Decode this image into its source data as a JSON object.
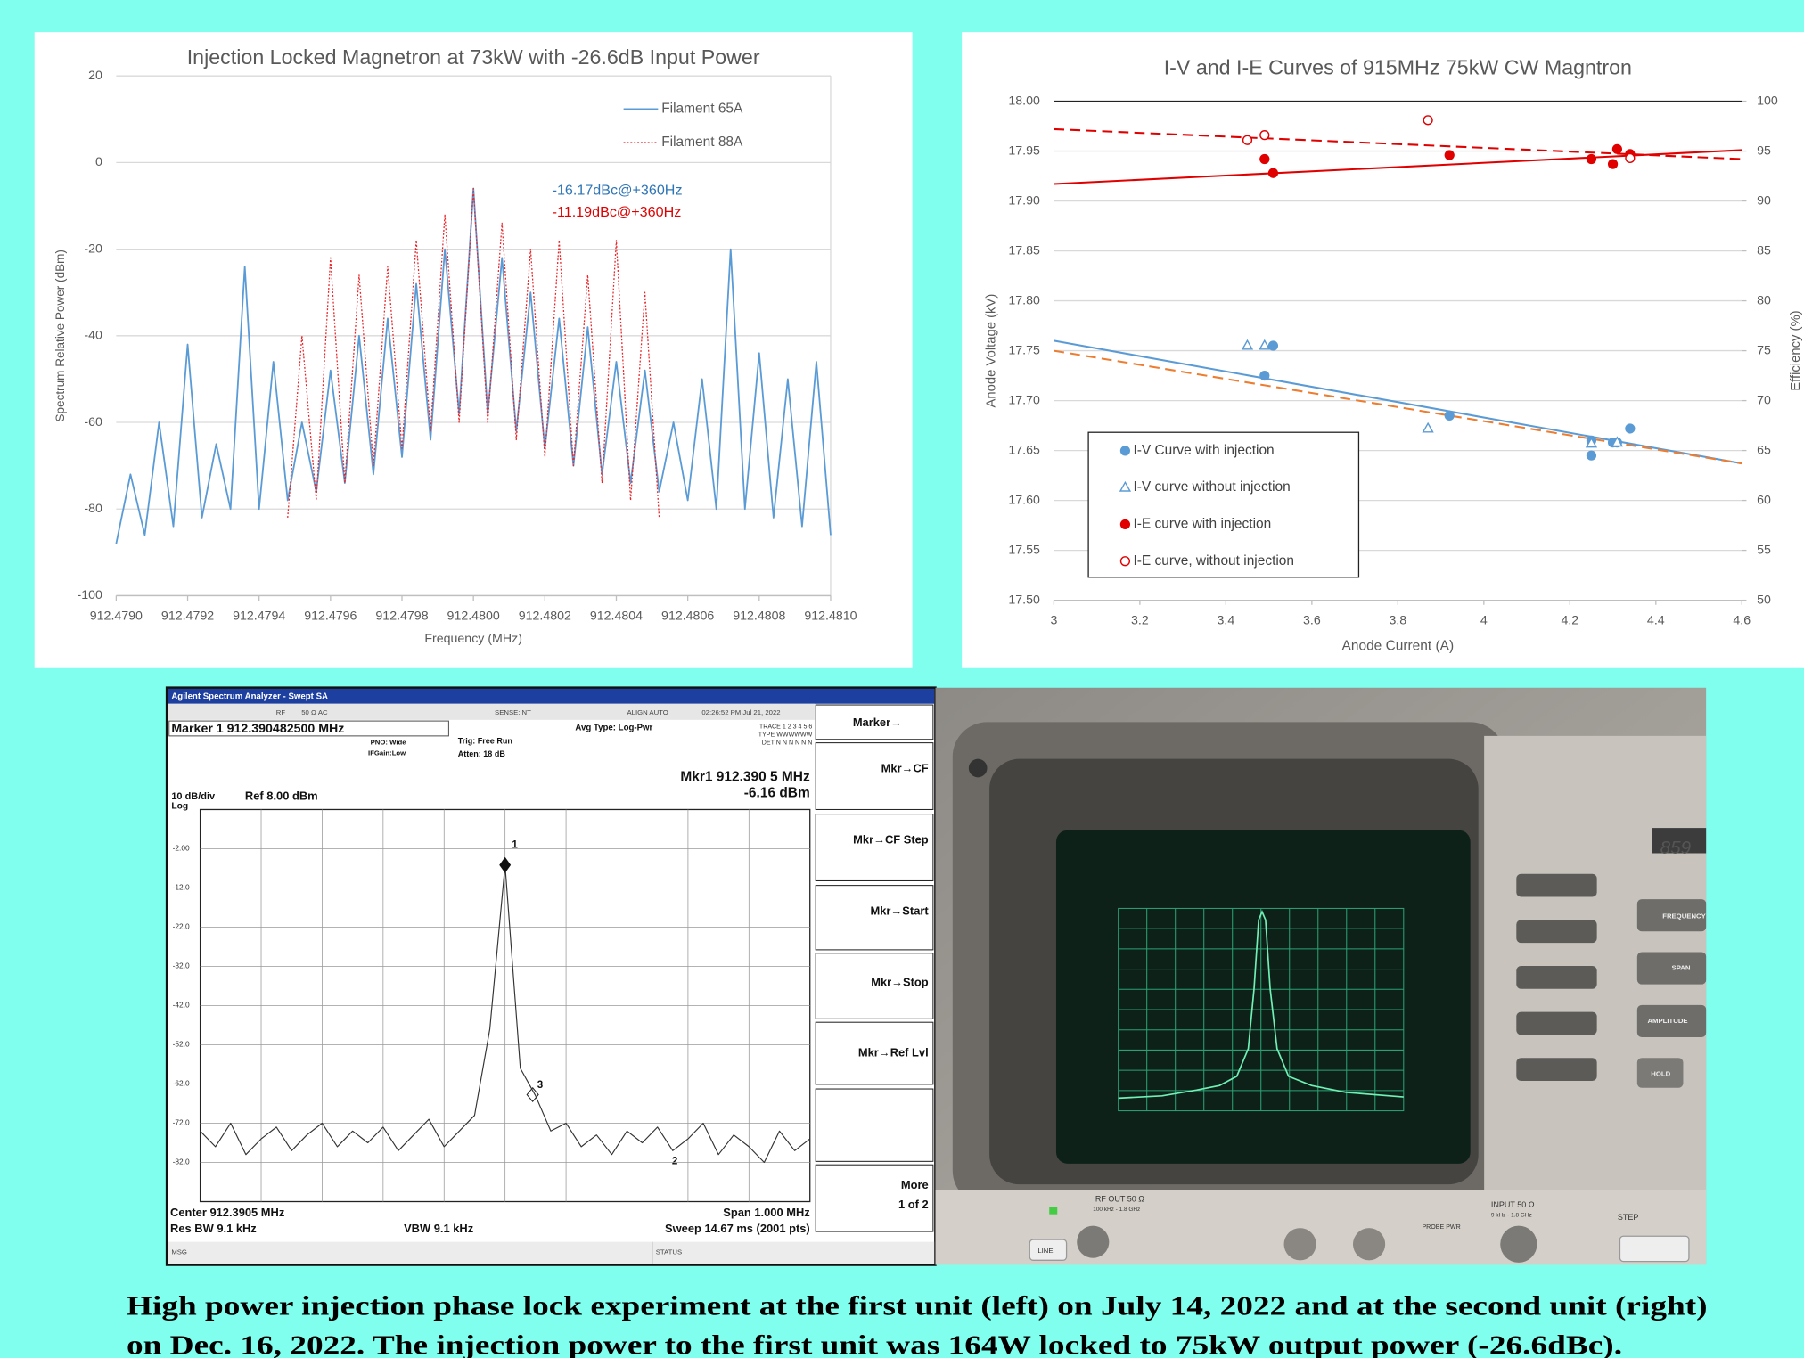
{
  "chart_data": [
    {
      "type": "line",
      "title": "Injection Locked Magnetron at 73kW with -26.6dB Input Power",
      "x_label": "Frequency (MHz)",
      "y_label": "Spectrum Relative Power (dBm)",
      "x": [
        912.479,
        912.47904,
        912.47908,
        912.47912,
        912.47916,
        912.4792,
        912.47924,
        912.47928,
        912.47932,
        912.47936,
        912.4794,
        912.47944,
        912.47948,
        912.47952,
        912.47956,
        912.4796,
        912.47964,
        912.47968,
        912.47972,
        912.47976,
        912.4798,
        912.47984,
        912.47988,
        912.47992,
        912.47996,
        912.48,
        912.48004,
        912.48008,
        912.48012,
        912.48016,
        912.4802,
        912.48024,
        912.48028,
        912.48032,
        912.48036,
        912.4804,
        912.48044,
        912.48048,
        912.48052,
        912.48056,
        912.4806,
        912.48064,
        912.48068,
        912.48072,
        912.48076,
        912.4808,
        912.48084,
        912.48088,
        912.48092,
        912.48096,
        912.481
      ],
      "series": [
        {
          "name": "Filament 65A",
          "color": "#5b9bd5",
          "values": [
            -88,
            -72,
            -86,
            -60,
            -84,
            -42,
            -82,
            -65,
            -80,
            -24,
            -80,
            -46,
            -78,
            -60,
            -76,
            -48,
            -74,
            -40,
            -72,
            -36,
            -68,
            -28,
            -64,
            -20,
            -58,
            -6,
            -58,
            -22,
            -62,
            -30,
            -66,
            -36,
            -70,
            -38,
            -72,
            -46,
            -74,
            -48,
            -76,
            -60,
            -78,
            -50,
            -80,
            -20,
            -80,
            -44,
            -82,
            -50,
            -84,
            -46,
            -86
          ]
        },
        {
          "name": "Filament 88A",
          "color": "#e8262a",
          "dotted": true,
          "values": [
            null,
            null,
            null,
            null,
            null,
            null,
            null,
            null,
            null,
            null,
            null,
            null,
            -82,
            -40,
            -78,
            -22,
            -74,
            -26,
            -70,
            -24,
            -66,
            -18,
            -62,
            -12,
            -60,
            -6,
            -60,
            -14,
            -64,
            -20,
            -68,
            -18,
            -70,
            -26,
            -74,
            -18,
            -78,
            -30,
            -82,
            null,
            null,
            null,
            null,
            null,
            null,
            null,
            null,
            null,
            null,
            null,
            null
          ]
        }
      ],
      "xlim": [
        912.479,
        912.481
      ],
      "xticks": [
        {
          "value": 912.479,
          "label": "912.4790"
        },
        {
          "value": 912.4792,
          "label": "912.4792"
        },
        {
          "value": 912.4794,
          "label": "912.4794"
        },
        {
          "value": 912.4796,
          "label": "912.4796"
        },
        {
          "value": 912.4798,
          "label": "912.4798"
        },
        {
          "value": 912.48,
          "label": "912.4800"
        },
        {
          "value": 912.4802,
          "label": "912.4802"
        },
        {
          "value": 912.4804,
          "label": "912.4804"
        },
        {
          "value": 912.4806,
          "label": "912.4806"
        },
        {
          "value": 912.4808,
          "label": "912.4808"
        },
        {
          "value": 912.481,
          "label": "912.4810"
        }
      ],
      "ylim": [
        -100,
        20
      ],
      "yticks": [
        20,
        0,
        -20,
        -40,
        -60,
        -80,
        -100
      ],
      "grid": true,
      "legend": "upper right",
      "annotations": [
        {
          "text": "-16.17dBc@+360Hz",
          "color": "#2e75b6"
        },
        {
          "text": "-11.19dBc@+360Hz",
          "color": "#e00000"
        }
      ]
    },
    {
      "type": "scatter",
      "title": "I-V and I-E Curves of 915MHz 75kW CW Magntron",
      "x_label": "Anode Current (A)",
      "y_label": "Anode Voltage (kV)",
      "y2_label": "Efficiency (%)",
      "xlim": [
        3,
        4.6
      ],
      "xticks": [
        3,
        3.2,
        3.4,
        3.6,
        3.8,
        4,
        4.2,
        4.4,
        4.6
      ],
      "ylim": [
        17.5,
        18
      ],
      "yticks": [
        {
          "value": 17.5,
          "label": "17.50"
        },
        17.55,
        {
          "value": 17.6,
          "label": "17.60"
        },
        17.65,
        {
          "value": 17.7,
          "label": "17.70"
        },
        17.75,
        {
          "value": 17.8,
          "label": "17.80"
        },
        17.85,
        {
          "value": 17.9,
          "label": "17.90"
        },
        17.95,
        {
          "value": 18,
          "label": "18.00"
        }
      ],
      "y2lim": [
        50,
        100
      ],
      "y2ticks": [
        50,
        55,
        60,
        65,
        70,
        75,
        80,
        85,
        90,
        95,
        100
      ],
      "grid": true,
      "legend": "lower left",
      "series": [
        {
          "name": "I-V Curve with injection",
          "color": "#5b9bd5",
          "marker": "circle",
          "filled": true,
          "x": [
            3.49,
            3.51,
            3.92,
            4.25,
            4.25,
            4.3,
            4.31,
            4.34
          ],
          "values": [
            17.725,
            17.755,
            17.685,
            17.66,
            17.645,
            17.658,
            17.658,
            17.672
          ]
        },
        {
          "name": "I-V curve without injection",
          "color": "#5b9bd5",
          "marker": "triangle",
          "filled": false,
          "x": [
            3.45,
            3.49,
            3.87,
            4.25,
            4.31
          ],
          "values": [
            17.755,
            17.755,
            17.672,
            17.657,
            17.658
          ]
        },
        {
          "name": "I-E curve with injection",
          "color": "#e00000",
          "marker": "circle",
          "filled": true,
          "axis": "y2",
          "x": [
            3.49,
            3.51,
            3.92,
            4.25,
            4.3,
            4.31,
            4.34
          ],
          "values": [
            94.2,
            92.8,
            94.6,
            94.2,
            93.7,
            95.2,
            94.7
          ]
        },
        {
          "name": "I-E curve, without injection",
          "color": "#e00000",
          "marker": "circle",
          "filled": false,
          "axis": "y2",
          "x": [
            3.45,
            3.49,
            3.87,
            4.34
          ],
          "values": [
            96.1,
            96.6,
            98.1,
            94.3
          ]
        }
      ],
      "trendlines": [
        {
          "color": "#5b9bd5",
          "dashed": false,
          "x": [
            3,
            4.6
          ],
          "values": [
            17.76,
            17.637
          ]
        },
        {
          "color": "#ed7d31",
          "dashed": true,
          "x": [
            3,
            4.6
          ],
          "values": [
            17.75,
            17.637
          ]
        },
        {
          "color": "#e00000",
          "dashed": false,
          "axis": "y2",
          "x": [
            3,
            4.6
          ],
          "values": [
            91.7,
            95.1
          ]
        },
        {
          "color": "#e00000",
          "dashed": true,
          "axis": "y2",
          "x": [
            3,
            4.6
          ],
          "values": [
            97.2,
            94.2
          ]
        }
      ]
    },
    {
      "type": "line",
      "color": "#333333",
      "x": [
        911.8905,
        911.9155,
        911.9405,
        911.9655,
        911.9905,
        912.0155,
        912.0405,
        912.0655,
        912.0905,
        912.1155,
        912.1405,
        912.1655,
        912.1905,
        912.2155,
        912.2405,
        912.2655,
        912.2905,
        912.3155,
        912.3405,
        912.3655,
        912.3905,
        912.4155,
        912.4405,
        912.4655,
        912.4905,
        912.5155,
        912.5405,
        912.5655,
        912.5905,
        912.6155,
        912.6405,
        912.6655,
        912.6905,
        912.7155,
        912.7405,
        912.7655,
        912.7905,
        912.8155,
        912.8405,
        912.8655,
        912.8905
      ],
      "values": [
        -74,
        -78,
        -72,
        -80,
        -76,
        -73,
        -79,
        -75,
        -72,
        -78,
        -74,
        -77,
        -73,
        -79,
        -75,
        -71,
        -78,
        -74,
        -70,
        -48,
        -6.16,
        -58,
        -65,
        -74,
        -72,
        -78,
        -75,
        -80,
        -74,
        -77,
        -73,
        -79,
        -76,
        -72,
        -80,
        -75,
        -78,
        -82,
        -74,
        -79,
        -76
      ],
      "xlim": [
        911.8905,
        912.8905
      ],
      "ylim": [
        -92,
        8
      ],
      "yticks": [
        {
          "value": -2,
          "label": "-2.00"
        },
        {
          "value": -12,
          "label": "-12.0"
        },
        {
          "value": -22,
          "label": "-22.0"
        },
        {
          "value": -32,
          "label": "-32.0"
        },
        {
          "value": -42,
          "label": "-42.0"
        },
        {
          "value": -52,
          "label": "-52.0"
        },
        {
          "value": -62,
          "label": "-62.0"
        },
        {
          "value": -72,
          "label": "-72.0"
        },
        {
          "value": -82,
          "label": "-82.0"
        }
      ],
      "grid": true
    }
  ],
  "analyzer": {
    "window_title": "Agilent Spectrum Analyzer - Swept SA",
    "status": [
      "RF",
      "50 Ω  AC",
      "SENSE:INT",
      "ALIGN AUTO",
      "02:26:52 PM Jul 21, 2022"
    ],
    "marker": "Marker 1 912.390482500 MHz",
    "pno": "PNO: Wide",
    "ifgain": "IFGain:Low",
    "trig": "Trig: Free Run",
    "atten": "Atten: 18 dB",
    "avg_type": "Avg Type: Log-Pwr",
    "trace_rows": [
      "TRACE 1 2 3 4 5 6",
      "TYPE WWWWWW",
      "DET N N N N N N"
    ],
    "mkr_readout": [
      "Mkr1 912.390 5 MHz",
      "-6.16 dBm"
    ],
    "scale": "10 dB/div",
    "log": "Log",
    "ref": "Ref 8.00 dBm",
    "marker_labels": [
      "1",
      "3",
      "2"
    ],
    "center": "Center 912.3905 MHz",
    "res_bw": "Res BW 9.1 kHz",
    "vbw": "VBW 9.1 kHz",
    "span": "Span 1.000 MHz",
    "sweep": "Sweep  14.67 ms (2001 pts)",
    "msg": "MSG",
    "status_label": "STATUS",
    "softkeys": [
      "Marker→",
      "Mkr→CF",
      "Mkr→CF Step",
      "Mkr→Start",
      "Mkr→Stop",
      "Mkr→Ref Lvl",
      "More",
      "1 of 2"
    ]
  },
  "photo": {
    "model": "859",
    "buttons": [
      "FREQUENCY",
      "SPAN",
      "AMPLITUDE",
      "HOLD"
    ],
    "rf_out": "RF OUT 50 Ω",
    "rf_out_range": "100 kHz - 1.8 GHz",
    "input": "INPUT 50 Ω",
    "input_range": "9 kHz - 1.8 GHz",
    "step": "STEP",
    "line": "LINE",
    "probe": "PROBE PWR"
  },
  "caption": [
    "High power injection phase lock experiment at the first unit (left) on July 14, 2022 and at the second unit (right)",
    "on Dec. 16, 2022. The injection power to the first unit was 164W locked to 75kW output power (-26.6dBc)."
  ]
}
